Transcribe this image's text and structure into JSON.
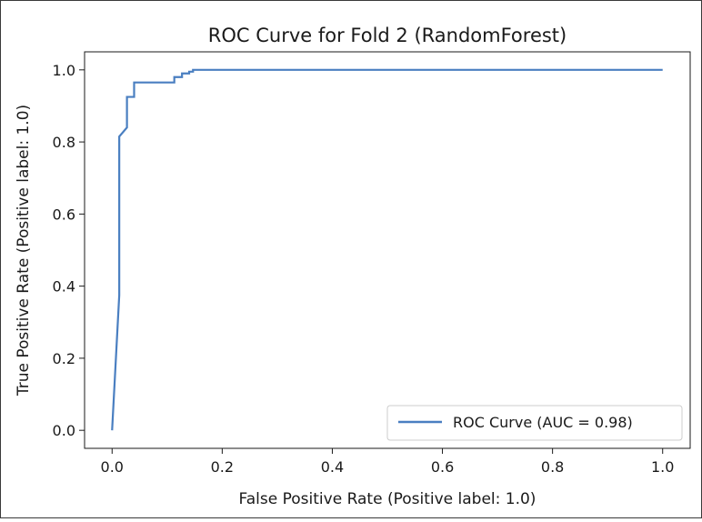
{
  "chart_data": {
    "type": "line",
    "title": "ROC Curve for Fold 2 (RandomForest)",
    "xlabel": "False Positive Rate (Positive label: 1.0)",
    "ylabel": "True Positive Rate (Positive label: 1.0)",
    "xlim": [
      -0.05,
      1.05
    ],
    "ylim": [
      -0.05,
      1.05
    ],
    "xticks": [
      "0.0",
      "0.2",
      "0.4",
      "0.6",
      "0.8",
      "1.0"
    ],
    "yticks": [
      "0.0",
      "0.2",
      "0.4",
      "0.6",
      "0.8",
      "1.0"
    ],
    "grid": false,
    "legend_position": "bottom-right",
    "series": [
      {
        "name": "ROC Curve (AUC = 0.98)",
        "color": "#4a7fc1",
        "x": [
          0.0,
          0.013,
          0.013,
          0.027,
          0.027,
          0.04,
          0.04,
          0.113,
          0.113,
          0.127,
          0.127,
          0.14,
          0.14,
          0.147,
          0.147,
          1.0
        ],
        "y": [
          0.0,
          0.375,
          0.815,
          0.84,
          0.925,
          0.925,
          0.965,
          0.965,
          0.98,
          0.98,
          0.99,
          0.99,
          0.995,
          0.995,
          1.0,
          1.0
        ]
      }
    ]
  }
}
